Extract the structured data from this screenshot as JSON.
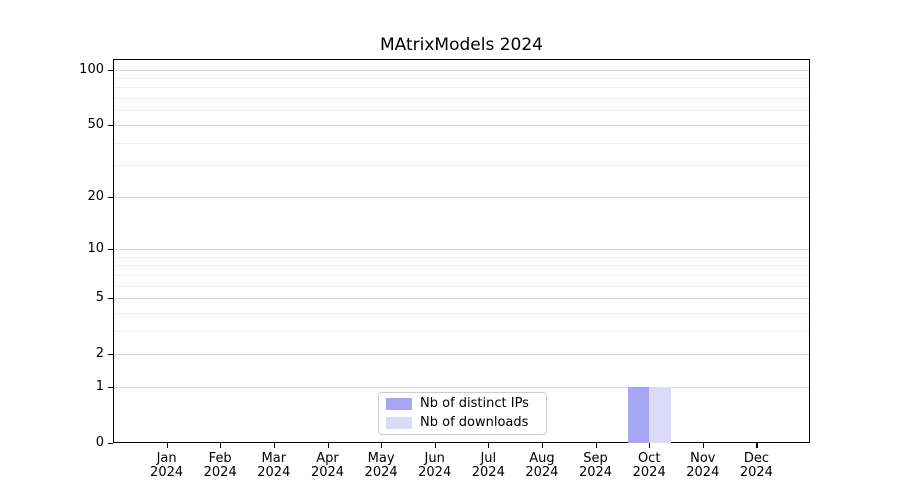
{
  "chart_data": {
    "type": "bar",
    "title": "MAtrixModels 2024",
    "x_tick_months": [
      "Jan",
      "Feb",
      "Mar",
      "Apr",
      "May",
      "Jun",
      "Jul",
      "Aug",
      "Sep",
      "Oct",
      "Nov",
      "Dec"
    ],
    "x_tick_year": "2024",
    "series": [
      {
        "name": "Nb of distinct IPs",
        "color": "#a6a6f2",
        "values": [
          0,
          0,
          0,
          0,
          0,
          0,
          0,
          0,
          0,
          1,
          0,
          0
        ]
      },
      {
        "name": "Nb of downloads",
        "color": "#dbdbf8",
        "values": [
          0,
          0,
          0,
          0,
          0,
          0,
          0,
          0,
          0,
          1,
          0,
          0
        ]
      }
    ],
    "y_scale": "log1p",
    "y_major_ticks": [
      0,
      1,
      2,
      5,
      10,
      20,
      50,
      100
    ],
    "y_minor_gridlines": [
      3,
      4,
      6,
      7,
      8,
      9,
      30,
      40,
      60,
      70,
      80,
      90
    ],
    "ylim": [
      0,
      114
    ],
    "grid": "horizontal",
    "legend_position": "bottom-center"
  }
}
